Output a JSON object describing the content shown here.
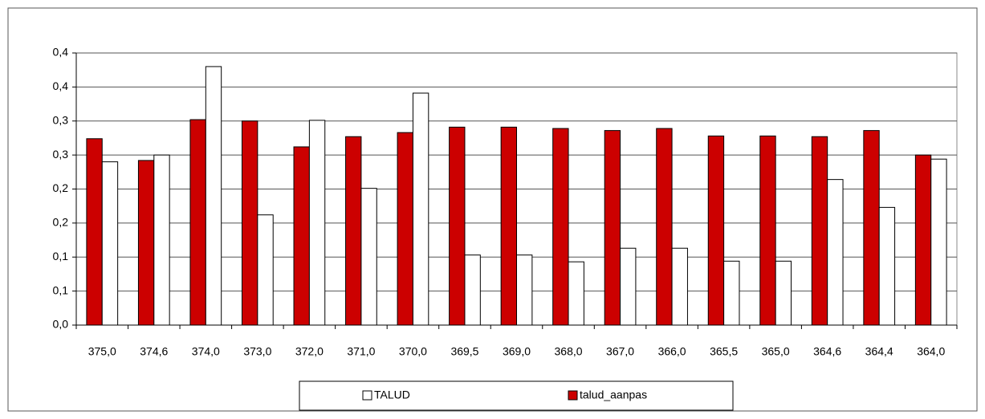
{
  "chart_data": {
    "type": "bar",
    "categories": [
      "375,0",
      "374,6",
      "374,0",
      "373,0",
      "372,0",
      "371,0",
      "370,0",
      "369,5",
      "369,0",
      "368,0",
      "367,0",
      "366,0",
      "365,5",
      "365,0",
      "364,6",
      "364,4",
      "364,0"
    ],
    "series": [
      {
        "name": "talud_aanpas",
        "color": "#cc0000",
        "values": [
          0.274,
          0.242,
          0.302,
          0.3,
          0.262,
          0.277,
          0.283,
          0.291,
          0.291,
          0.289,
          0.286,
          0.289,
          0.278,
          0.278,
          0.277,
          0.286,
          0.25
        ]
      },
      {
        "name": "TALUD",
        "color": "#ffffff",
        "values": [
          0.24,
          0.25,
          0.38,
          0.162,
          0.301,
          0.201,
          0.341,
          0.103,
          0.103,
          0.093,
          0.113,
          0.113,
          0.094,
          0.094,
          0.214,
          0.173,
          0.244
        ]
      }
    ],
    "ylim": [
      0,
      0.4
    ],
    "yticks": [
      {
        "value": 0,
        "label": "0,0"
      },
      {
        "value": 0.05,
        "label": "0,1"
      },
      {
        "value": 0.1,
        "label": "0,1"
      },
      {
        "value": 0.15,
        "label": "0,2"
      },
      {
        "value": 0.2,
        "label": "0,2"
      },
      {
        "value": 0.25,
        "label": "0,3"
      },
      {
        "value": 0.3,
        "label": "0,3"
      },
      {
        "value": 0.35,
        "label": "0,4"
      },
      {
        "value": 0.4,
        "label": "0,4"
      }
    ],
    "grid": true
  }
}
